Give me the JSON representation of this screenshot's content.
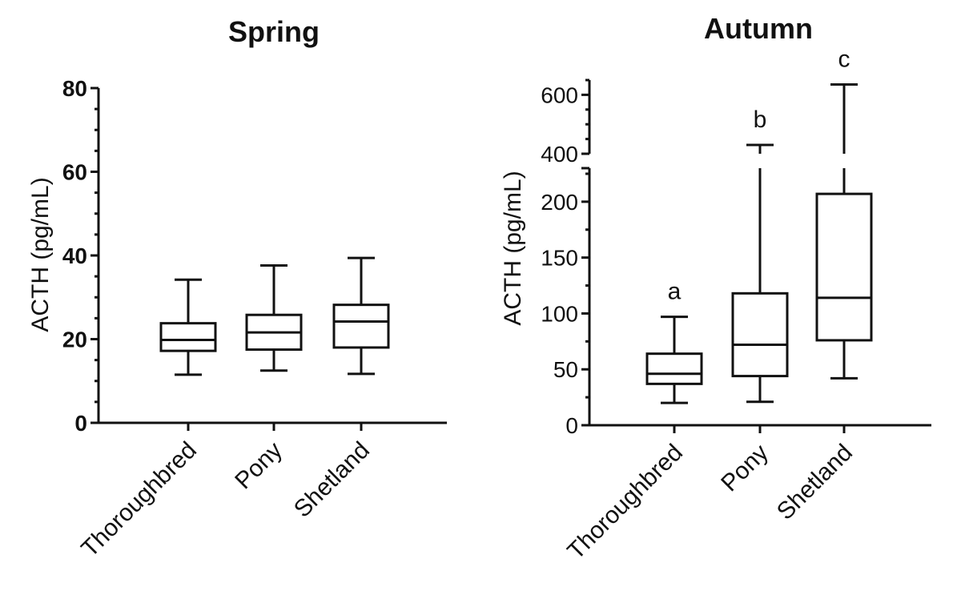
{
  "chart_data": [
    {
      "type": "boxplot",
      "title": "Spring",
      "ylabel": "ACTH (pg/mL)",
      "ylim": [
        0,
        80
      ],
      "yticks": [
        "0",
        "20",
        "40",
        "60",
        "80"
      ],
      "categories": [
        "Thoroughbred",
        "Pony",
        "Shetland"
      ],
      "boxes": [
        {
          "min": 11.5,
          "q1": 17.2,
          "median": 19.8,
          "q3": 23.8,
          "max": 34.2
        },
        {
          "min": 12.5,
          "q1": 17.5,
          "median": 21.6,
          "q3": 25.8,
          "max": 37.6
        },
        {
          "min": 11.7,
          "q1": 18.0,
          "median": 24.2,
          "q3": 28.2,
          "max": 39.4
        }
      ],
      "grid": false
    },
    {
      "type": "boxplot",
      "title": "Autumn",
      "ylabel": "ACTH (pg/mL)",
      "yscale": "broken",
      "ylim_lower": [
        0,
        230
      ],
      "ylim_upper": [
        400,
        650
      ],
      "yticks_lower": [
        "0",
        "50",
        "100",
        "150",
        "200"
      ],
      "yticks_upper": [
        "400",
        "600"
      ],
      "categories": [
        "Thoroughbred",
        "Pony",
        "Shetland"
      ],
      "significance_labels": [
        "a",
        "b",
        "c"
      ],
      "boxes": [
        {
          "min": 20,
          "q1": 37,
          "median": 46,
          "q3": 64,
          "max": 97
        },
        {
          "min": 21,
          "q1": 44,
          "median": 72,
          "q3": 118,
          "max": 430
        },
        {
          "min": 42,
          "q1": 76,
          "median": 114,
          "q3": 207,
          "max": 635
        }
      ],
      "grid": false
    }
  ]
}
